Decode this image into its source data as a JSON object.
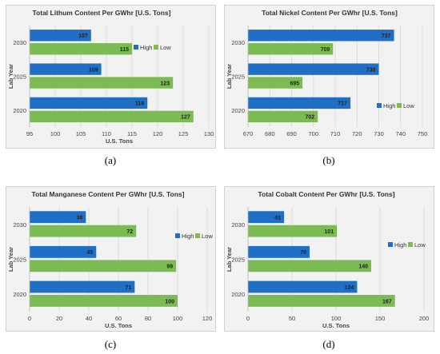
{
  "chart_data": [
    {
      "type": "bar",
      "orientation": "horizontal",
      "panel_label": "(a)",
      "title": "Total Lithum Content Per GWhr [U.S. Tons]",
      "xlabel": "U.S. Tons",
      "ylabel": "Lab Year",
      "categories": [
        "2030",
        "2025",
        "2020"
      ],
      "series": [
        {
          "name": "High",
          "values": [
            107,
            109,
            118
          ],
          "color": "#1f6fc4"
        },
        {
          "name": "Low",
          "values": [
            115,
            123,
            127
          ],
          "color": "#7cbb54"
        }
      ],
      "xlim": [
        95,
        130
      ],
      "xticks": [
        95,
        100,
        105,
        110,
        115,
        120,
        125,
        130
      ],
      "grid": true,
      "legend": "right",
      "background": "#f2f2f2"
    },
    {
      "type": "bar",
      "orientation": "horizontal",
      "panel_label": "(b)",
      "title": "Total Nickel Content Per GWhr [U.S. Tons]",
      "xlabel": "",
      "ylabel": "Lab Year",
      "categories": [
        "2030",
        "2025",
        "2020"
      ],
      "series": [
        {
          "name": "High",
          "values": [
            737,
            730,
            717
          ],
          "color": "#1f6fc4"
        },
        {
          "name": "Low",
          "values": [
            709,
            695,
            702
          ],
          "color": "#7cbb54"
        }
      ],
      "xlim": [
        670,
        750
      ],
      "xticks": [
        670,
        680,
        690,
        700,
        710,
        720,
        730,
        740,
        750
      ],
      "grid": true,
      "legend": "right",
      "background": "#f2f2f2"
    },
    {
      "type": "bar",
      "orientation": "horizontal",
      "panel_label": "(c)",
      "title": "Total Manganese Content Per GWhr [U.S. Tons]",
      "xlabel": "U.S. Tons",
      "ylabel": "Lab Year",
      "categories": [
        "2030",
        "2025",
        "2020"
      ],
      "series": [
        {
          "name": "High",
          "values": [
            38,
            45,
            71
          ],
          "color": "#1f6fc4"
        },
        {
          "name": "Low",
          "values": [
            72,
            99,
            100
          ],
          "color": "#7cbb54"
        }
      ],
      "xlim": [
        0,
        120
      ],
      "xticks": [
        0,
        20,
        40,
        60,
        80,
        100,
        120
      ],
      "grid": true,
      "legend": "right",
      "background": "#f2f2f2"
    },
    {
      "type": "bar",
      "orientation": "horizontal",
      "panel_label": "(d)",
      "title": "Total Cobalt Content Per GWhr [U.S. Tons]",
      "xlabel": "U.S. Tons",
      "ylabel": "Lab Year",
      "categories": [
        "2030",
        "2025",
        "2020"
      ],
      "series": [
        {
          "name": "High",
          "values": [
            41,
            70,
            124
          ],
          "color": "#1f6fc4"
        },
        {
          "name": "Low",
          "values": [
            101,
            140,
            167
          ],
          "color": "#7cbb54"
        }
      ],
      "xlim": [
        0,
        200
      ],
      "xticks": [
        0,
        50,
        100,
        150,
        200
      ],
      "grid": true,
      "legend": "right",
      "background": "#f2f2f2"
    }
  ]
}
